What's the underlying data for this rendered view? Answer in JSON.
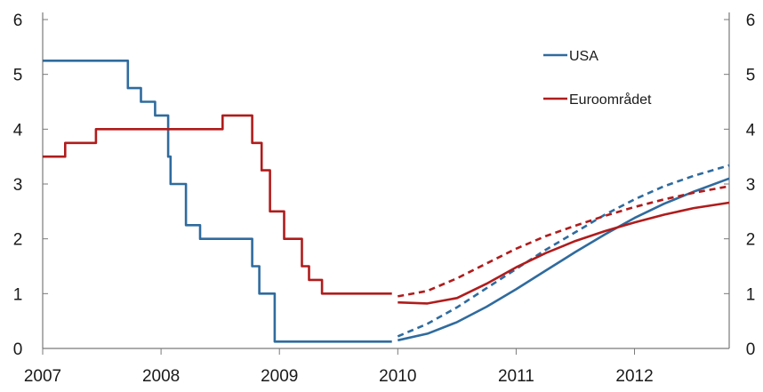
{
  "chart_data": {
    "type": "line",
    "xlim": [
      2007,
      2012.8
    ],
    "ylim": [
      0,
      6
    ],
    "x_ticks": [
      {
        "value": 2007,
        "label": "2007"
      },
      {
        "value": 2008,
        "label": "2008"
      },
      {
        "value": 2009,
        "label": "2009"
      },
      {
        "value": 2010,
        "label": "2010"
      },
      {
        "value": 2011,
        "label": "2011"
      },
      {
        "value": 2012,
        "label": "2012"
      }
    ],
    "y_ticks_left": [
      "0",
      "1",
      "2",
      "3",
      "4",
      "5",
      "6"
    ],
    "y_ticks_right": [
      "0",
      "1",
      "2",
      "3",
      "4",
      "5",
      "6"
    ],
    "grid": false,
    "legend": {
      "placement": "top-right"
    },
    "series": [
      {
        "name": "USA",
        "color": "#2f6b9e",
        "style": "step",
        "points": [
          [
            2007.0,
            5.25
          ],
          [
            2007.72,
            5.25
          ],
          [
            2007.72,
            4.75
          ],
          [
            2007.83,
            4.75
          ],
          [
            2007.83,
            4.5
          ],
          [
            2007.95,
            4.5
          ],
          [
            2007.95,
            4.25
          ],
          [
            2008.06,
            4.25
          ],
          [
            2008.06,
            3.5
          ],
          [
            2008.08,
            3.5
          ],
          [
            2008.08,
            3.0
          ],
          [
            2008.21,
            3.0
          ],
          [
            2008.21,
            2.25
          ],
          [
            2008.33,
            2.25
          ],
          [
            2008.33,
            2.0
          ],
          [
            2008.77,
            2.0
          ],
          [
            2008.77,
            1.5
          ],
          [
            2008.83,
            1.5
          ],
          [
            2008.83,
            1.0
          ],
          [
            2008.96,
            1.0
          ],
          [
            2008.96,
            0.125
          ],
          [
            2009.95,
            0.125
          ]
        ]
      },
      {
        "name": "Euroområdet",
        "color": "#b01c1c",
        "style": "step",
        "points": [
          [
            2007.0,
            3.5
          ],
          [
            2007.19,
            3.5
          ],
          [
            2007.19,
            3.75
          ],
          [
            2007.45,
            3.75
          ],
          [
            2007.45,
            4.0
          ],
          [
            2008.52,
            4.0
          ],
          [
            2008.52,
            4.25
          ],
          [
            2008.77,
            4.25
          ],
          [
            2008.77,
            3.75
          ],
          [
            2008.85,
            3.75
          ],
          [
            2008.85,
            3.25
          ],
          [
            2008.92,
            3.25
          ],
          [
            2008.92,
            2.5
          ],
          [
            2009.04,
            2.5
          ],
          [
            2009.04,
            2.0
          ],
          [
            2009.19,
            2.0
          ],
          [
            2009.19,
            1.5
          ],
          [
            2009.25,
            1.5
          ],
          [
            2009.25,
            1.25
          ],
          [
            2009.36,
            1.25
          ],
          [
            2009.36,
            1.0
          ],
          [
            2009.95,
            1.0
          ]
        ]
      },
      {
        "name": "",
        "color": "#2f6b9e",
        "style": "solid",
        "points": [
          [
            2010.0,
            0.15
          ],
          [
            2010.25,
            0.27
          ],
          [
            2010.5,
            0.48
          ],
          [
            2010.75,
            0.76
          ],
          [
            2011.0,
            1.08
          ],
          [
            2011.25,
            1.42
          ],
          [
            2011.5,
            1.76
          ],
          [
            2011.75,
            2.08
          ],
          [
            2012.0,
            2.38
          ],
          [
            2012.25,
            2.64
          ],
          [
            2012.5,
            2.86
          ],
          [
            2012.8,
            3.1
          ]
        ]
      },
      {
        "name": "",
        "color": "#2f6b9e",
        "style": "dashed",
        "points": [
          [
            2010.0,
            0.22
          ],
          [
            2010.25,
            0.45
          ],
          [
            2010.5,
            0.75
          ],
          [
            2010.75,
            1.1
          ],
          [
            2011.0,
            1.45
          ],
          [
            2011.25,
            1.8
          ],
          [
            2011.5,
            2.12
          ],
          [
            2011.75,
            2.44
          ],
          [
            2012.0,
            2.72
          ],
          [
            2012.25,
            2.96
          ],
          [
            2012.5,
            3.15
          ],
          [
            2012.8,
            3.34
          ]
        ]
      },
      {
        "name": "",
        "color": "#b01c1c",
        "style": "solid",
        "points": [
          [
            2010.0,
            0.84
          ],
          [
            2010.25,
            0.82
          ],
          [
            2010.5,
            0.92
          ],
          [
            2010.75,
            1.18
          ],
          [
            2011.0,
            1.48
          ],
          [
            2011.25,
            1.74
          ],
          [
            2011.5,
            1.96
          ],
          [
            2011.75,
            2.14
          ],
          [
            2012.0,
            2.3
          ],
          [
            2012.25,
            2.44
          ],
          [
            2012.5,
            2.56
          ],
          [
            2012.8,
            2.66
          ]
        ]
      },
      {
        "name": "",
        "color": "#b01c1c",
        "style": "dashed",
        "points": [
          [
            2010.0,
            0.95
          ],
          [
            2010.25,
            1.05
          ],
          [
            2010.5,
            1.28
          ],
          [
            2010.75,
            1.55
          ],
          [
            2011.0,
            1.82
          ],
          [
            2011.25,
            2.05
          ],
          [
            2011.5,
            2.24
          ],
          [
            2011.75,
            2.42
          ],
          [
            2012.0,
            2.58
          ],
          [
            2012.25,
            2.72
          ],
          [
            2012.5,
            2.84
          ],
          [
            2012.8,
            2.96
          ]
        ]
      }
    ]
  }
}
